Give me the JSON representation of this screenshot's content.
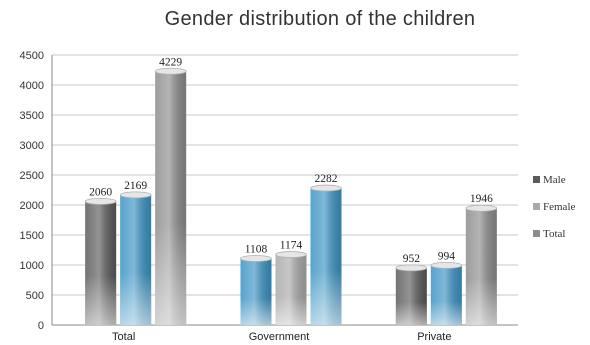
{
  "chart_data": {
    "type": "bar",
    "title": "Gender distribution of the children",
    "categories": [
      "Total",
      "Government",
      "Private"
    ],
    "series": [
      {
        "name": "Male",
        "values": [
          2060,
          1108,
          952
        ],
        "color": "#5a5a5a"
      },
      {
        "name": "Female",
        "values": [
          2169,
          1174,
          994
        ],
        "color": "#3a93c4"
      },
      {
        "name": "Total",
        "values": [
          4229,
          2282,
          1946
        ],
        "color": "#8c8c8c"
      }
    ],
    "bar_colors": [
      [
        "#5a5a5a",
        "#3a93c4",
        "#8c8c8c"
      ],
      [
        "#3a93c4",
        "#a9a9a9",
        "#3a93c4"
      ],
      [
        "#5a5a5a",
        "#3a93c4",
        "#8c8c8c"
      ]
    ],
    "data_labels": [
      [
        "2060",
        "2169",
        "4229"
      ],
      [
        "1108",
        "1174",
        "2282"
      ],
      [
        "952",
        "994",
        "1946"
      ]
    ],
    "ylim": [
      0,
      4500
    ],
    "yticks": [
      0,
      500,
      1000,
      1500,
      2000,
      2500,
      3000,
      3500,
      4000,
      4500
    ],
    "grid": true,
    "legend_position": "right",
    "legend": [
      {
        "name": "Male",
        "color": "#5a5a5a"
      },
      {
        "name": "Female",
        "color": "#a9a9a9"
      },
      {
        "name": "Total",
        "color": "#8c8c8c"
      }
    ]
  }
}
